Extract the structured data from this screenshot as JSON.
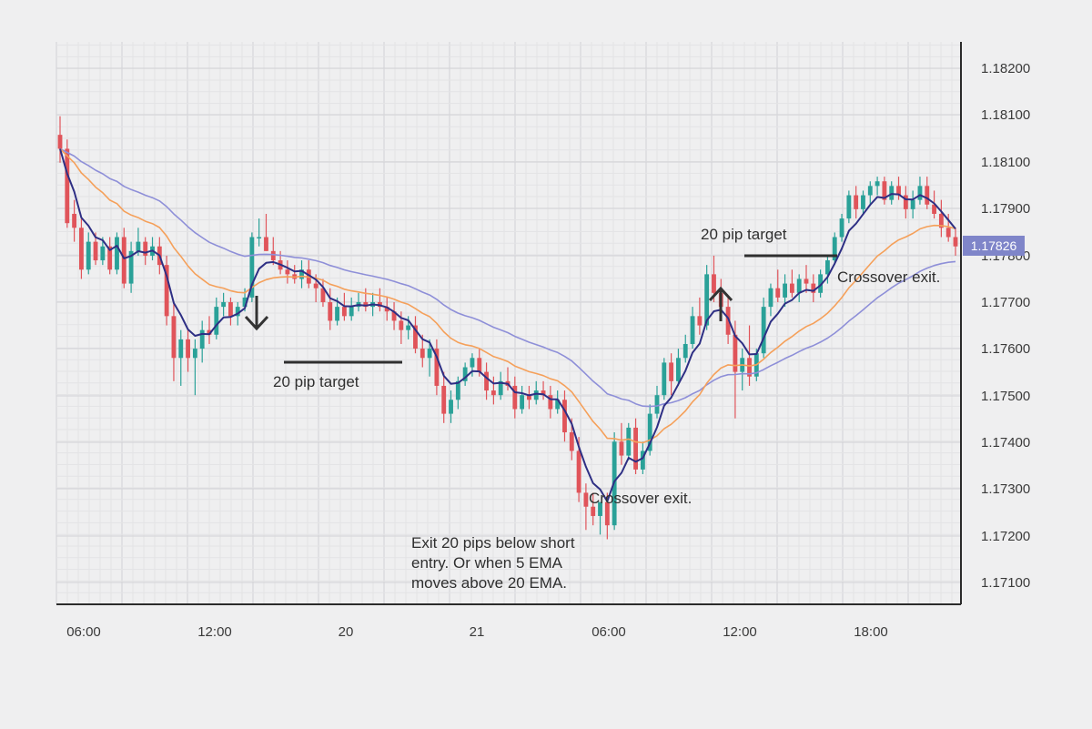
{
  "chart_data": {
    "type": "candlestick",
    "x_ticks": [
      "06:00",
      "12:00",
      "20",
      "21",
      "06:00",
      "12:00",
      "18:00"
    ],
    "y_ticks": [
      "1.18200",
      "1.18100",
      "1.18100",
      "1.17900",
      "1.17800",
      "1.17700",
      "1.17600",
      "1.17500",
      "1.17400",
      "1.17300",
      "1.17200",
      "1.17100"
    ],
    "ylim": [
      1.1705,
      1.1826
    ],
    "current_price": "1.17826",
    "colors": {
      "up": "#2aa198",
      "down": "#e0545a",
      "ema5": "#2e2f84",
      "ema20": "#f5a05a",
      "ema_slow": "#8e8fd8",
      "price_tag_bg": "#7f85c9",
      "grid_minor": "#e3e3e5",
      "grid_major": "#d2d2d6",
      "axis": "#2b2b2b"
    },
    "annotations": [
      {
        "text": "20 pip target"
      },
      {
        "text": "20 pip target"
      },
      {
        "text": "Crossover exit."
      },
      {
        "text": "Crossover exit."
      },
      {
        "text": "Exit 20 pips below short"
      },
      {
        "text": "entry.  Or when 5 EMA"
      },
      {
        "text": "moves above 20 EMA."
      }
    ],
    "arrows": [
      {
        "direction": "down"
      },
      {
        "direction": "up"
      }
    ],
    "candles": [
      [
        1.1806,
        1.181,
        1.18,
        1.1803
      ],
      [
        1.1803,
        1.1805,
        1.1786,
        1.1787
      ],
      [
        1.1789,
        1.1792,
        1.1783,
        1.1786
      ],
      [
        1.1786,
        1.1788,
        1.1775,
        1.1777
      ],
      [
        1.1777,
        1.1785,
        1.1776,
        1.1783
      ],
      [
        1.1783,
        1.1785,
        1.1778,
        1.1779
      ],
      [
        1.1779,
        1.1784,
        1.1778,
        1.1782
      ],
      [
        1.1782,
        1.1784,
        1.1776,
        1.1777
      ],
      [
        1.1777,
        1.1785,
        1.1776,
        1.1784
      ],
      [
        1.1784,
        1.1786,
        1.1773,
        1.1774
      ],
      [
        1.1774,
        1.1783,
        1.1772,
        1.1781
      ],
      [
        1.1781,
        1.1786,
        1.178,
        1.1783
      ],
      [
        1.1783,
        1.1784,
        1.1778,
        1.178
      ],
      [
        1.178,
        1.1784,
        1.1779,
        1.1782
      ],
      [
        1.1782,
        1.1784,
        1.1776,
        1.1778
      ],
      [
        1.1778,
        1.178,
        1.1765,
        1.1767
      ],
      [
        1.1767,
        1.177,
        1.1753,
        1.1758
      ],
      [
        1.1758,
        1.1764,
        1.1752,
        1.1762
      ],
      [
        1.1762,
        1.1764,
        1.1755,
        1.1758
      ],
      [
        1.1758,
        1.1762,
        1.175,
        1.176
      ],
      [
        1.176,
        1.1766,
        1.1757,
        1.1764
      ],
      [
        1.1764,
        1.1767,
        1.1761,
        1.1763
      ],
      [
        1.1763,
        1.1771,
        1.1762,
        1.1769
      ],
      [
        1.1769,
        1.1772,
        1.1767,
        1.177
      ],
      [
        1.177,
        1.1771,
        1.1765,
        1.1767
      ],
      [
        1.1767,
        1.177,
        1.1765,
        1.1769
      ],
      [
        1.1769,
        1.1773,
        1.1768,
        1.1771
      ],
      [
        1.1771,
        1.1785,
        1.177,
        1.1784
      ],
      [
        1.1784,
        1.1788,
        1.1782,
        1.1784
      ],
      [
        1.1784,
        1.1789,
        1.1781,
        1.1781
      ],
      [
        1.1781,
        1.1784,
        1.1778,
        1.1779
      ],
      [
        1.1779,
        1.1781,
        1.1776,
        1.1777
      ],
      [
        1.1777,
        1.1779,
        1.1774,
        1.1776
      ],
      [
        1.1776,
        1.1778,
        1.1774,
        1.1775
      ],
      [
        1.1775,
        1.1779,
        1.1773,
        1.1777
      ],
      [
        1.1777,
        1.1779,
        1.1773,
        1.1774
      ],
      [
        1.1774,
        1.1776,
        1.177,
        1.1773
      ],
      [
        1.1773,
        1.1775,
        1.1769,
        1.177
      ],
      [
        1.177,
        1.1773,
        1.1764,
        1.1766
      ],
      [
        1.1766,
        1.1771,
        1.1765,
        1.1769
      ],
      [
        1.1769,
        1.1772,
        1.1766,
        1.1767
      ],
      [
        1.1767,
        1.1771,
        1.1766,
        1.1769
      ],
      [
        1.1769,
        1.1772,
        1.1768,
        1.177
      ],
      [
        1.177,
        1.1773,
        1.1768,
        1.1769
      ],
      [
        1.1769,
        1.1772,
        1.1767,
        1.177
      ],
      [
        1.177,
        1.1773,
        1.1768,
        1.1769
      ],
      [
        1.1769,
        1.1771,
        1.1766,
        1.1768
      ],
      [
        1.1768,
        1.177,
        1.1764,
        1.1766
      ],
      [
        1.1766,
        1.1768,
        1.1761,
        1.1764
      ],
      [
        1.1764,
        1.1767,
        1.1762,
        1.1765
      ],
      [
        1.1765,
        1.1767,
        1.1759,
        1.176
      ],
      [
        1.176,
        1.1763,
        1.1756,
        1.1758
      ],
      [
        1.1758,
        1.1762,
        1.1754,
        1.176
      ],
      [
        1.176,
        1.1762,
        1.175,
        1.1752
      ],
      [
        1.1752,
        1.1755,
        1.1744,
        1.1746
      ],
      [
        1.1746,
        1.1751,
        1.1744,
        1.1749
      ],
      [
        1.1749,
        1.1754,
        1.1747,
        1.1753
      ],
      [
        1.1753,
        1.1757,
        1.1752,
        1.1756
      ],
      [
        1.1756,
        1.1759,
        1.1754,
        1.1758
      ],
      [
        1.1758,
        1.176,
        1.1754,
        1.1755
      ],
      [
        1.1755,
        1.1757,
        1.1749,
        1.1751
      ],
      [
        1.1751,
        1.1754,
        1.1748,
        1.175
      ],
      [
        1.175,
        1.1755,
        1.1749,
        1.1753
      ],
      [
        1.1753,
        1.1756,
        1.1751,
        1.1752
      ],
      [
        1.1752,
        1.1754,
        1.1745,
        1.1747
      ],
      [
        1.1747,
        1.1752,
        1.1746,
        1.175
      ],
      [
        1.175,
        1.1752,
        1.1747,
        1.1749
      ],
      [
        1.1749,
        1.1753,
        1.1748,
        1.1751
      ],
      [
        1.1751,
        1.1753,
        1.1749,
        1.175
      ],
      [
        1.175,
        1.1752,
        1.1745,
        1.1747
      ],
      [
        1.1747,
        1.1751,
        1.1746,
        1.1749
      ],
      [
        1.1749,
        1.1751,
        1.174,
        1.1742
      ],
      [
        1.1742,
        1.1745,
        1.1736,
        1.1738
      ],
      [
        1.1738,
        1.1741,
        1.1727,
        1.1729
      ],
      [
        1.1729,
        1.1731,
        1.1721,
        1.1726
      ],
      [
        1.1726,
        1.1729,
        1.1722,
        1.1724
      ],
      [
        1.1724,
        1.1727,
        1.172,
        1.1727
      ],
      [
        1.1727,
        1.1729,
        1.1719,
        1.1722
      ],
      [
        1.1722,
        1.1742,
        1.1721,
        1.174
      ],
      [
        1.174,
        1.1744,
        1.1735,
        1.1737
      ],
      [
        1.1737,
        1.1744,
        1.1736,
        1.1743
      ],
      [
        1.1743,
        1.1745,
        1.1733,
        1.1734
      ],
      [
        1.1734,
        1.174,
        1.1733,
        1.1738
      ],
      [
        1.1738,
        1.1748,
        1.1737,
        1.1746
      ],
      [
        1.1746,
        1.1752,
        1.1745,
        1.175
      ],
      [
        1.175,
        1.1758,
        1.1749,
        1.1757
      ],
      [
        1.1757,
        1.1759,
        1.175,
        1.1753
      ],
      [
        1.1753,
        1.176,
        1.1752,
        1.1758
      ],
      [
        1.1758,
        1.1763,
        1.1757,
        1.1761
      ],
      [
        1.1761,
        1.1769,
        1.176,
        1.1767
      ],
      [
        1.1767,
        1.1771,
        1.1763,
        1.1765
      ],
      [
        1.1765,
        1.1778,
        1.1764,
        1.1776
      ],
      [
        1.1776,
        1.178,
        1.177,
        1.1772
      ],
      [
        1.1772,
        1.1775,
        1.1767,
        1.1769
      ],
      [
        1.1769,
        1.1771,
        1.1761,
        1.1763
      ],
      [
        1.1763,
        1.1766,
        1.1745,
        1.1755
      ],
      [
        1.1755,
        1.176,
        1.1751,
        1.1758
      ],
      [
        1.1758,
        1.1765,
        1.1752,
        1.1754
      ],
      [
        1.1754,
        1.176,
        1.1753,
        1.1759
      ],
      [
        1.1759,
        1.1771,
        1.1758,
        1.1769
      ],
      [
        1.1769,
        1.1774,
        1.1767,
        1.1773
      ],
      [
        1.1773,
        1.1777,
        1.177,
        1.1771
      ],
      [
        1.1771,
        1.1776,
        1.1769,
        1.1774
      ],
      [
        1.1774,
        1.1777,
        1.1771,
        1.1772
      ],
      [
        1.1772,
        1.1776,
        1.177,
        1.1775
      ],
      [
        1.1775,
        1.1778,
        1.1772,
        1.1774
      ],
      [
        1.1774,
        1.1776,
        1.177,
        1.1772
      ],
      [
        1.1772,
        1.1777,
        1.1771,
        1.1776
      ],
      [
        1.1776,
        1.178,
        1.1774,
        1.1779
      ],
      [
        1.1779,
        1.1785,
        1.1778,
        1.1784
      ],
      [
        1.1784,
        1.1789,
        1.1783,
        1.1788
      ],
      [
        1.1788,
        1.1794,
        1.1787,
        1.1793
      ],
      [
        1.1793,
        1.1795,
        1.1788,
        1.179
      ],
      [
        1.179,
        1.1794,
        1.1789,
        1.1793
      ],
      [
        1.1793,
        1.1796,
        1.1791,
        1.1795
      ],
      [
        1.1795,
        1.1797,
        1.1793,
        1.1796
      ],
      [
        1.1796,
        1.1797,
        1.1791,
        1.1792
      ],
      [
        1.1792,
        1.1796,
        1.1791,
        1.1795
      ],
      [
        1.1795,
        1.1797,
        1.1792,
        1.1793
      ],
      [
        1.1793,
        1.1795,
        1.1788,
        1.179
      ],
      [
        1.179,
        1.1794,
        1.1788,
        1.1792
      ],
      [
        1.1792,
        1.1797,
        1.1791,
        1.1795
      ],
      [
        1.1795,
        1.1797,
        1.179,
        1.1791
      ],
      [
        1.1791,
        1.1794,
        1.1788,
        1.1789
      ],
      [
        1.1789,
        1.1792,
        1.1784,
        1.1786
      ],
      [
        1.1786,
        1.1789,
        1.1783,
        1.1784
      ],
      [
        1.1784,
        1.1786,
        1.178,
        1.1782
      ]
    ]
  }
}
